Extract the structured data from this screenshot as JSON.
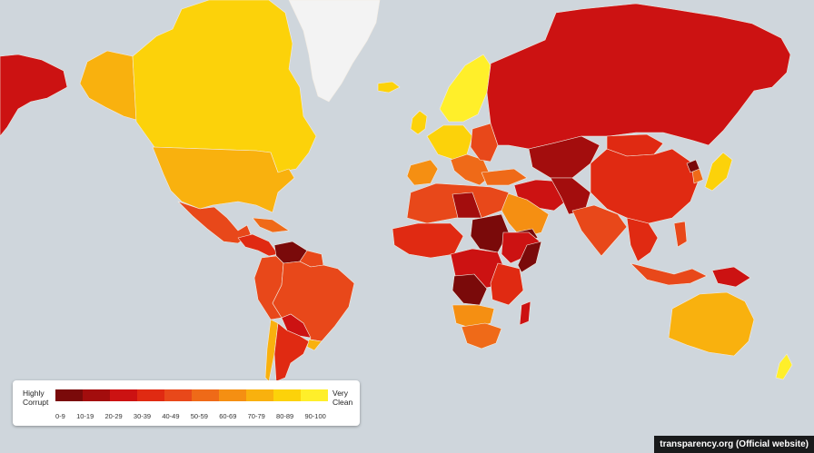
{
  "legend": {
    "left_label": "Highly\nCorrupt",
    "right_label": "Very\nClean",
    "ranges": [
      "0-9",
      "10-19",
      "20-29",
      "30-39",
      "40-49",
      "50-59",
      "60-69",
      "70-79",
      "80-89",
      "90-100"
    ],
    "colors": [
      "#7a0a0a",
      "#a30d0d",
      "#cc1212",
      "#e02a12",
      "#e8481a",
      "#ef6a18",
      "#f58f12",
      "#f9b10e",
      "#fcd20a",
      "#ffef2a"
    ]
  },
  "credit": "transparency.org (Official website)",
  "map_colors": {
    "ocean": "#cfd6dc",
    "ice": "#f5f5f5",
    "border": "#f3ece2"
  }
}
